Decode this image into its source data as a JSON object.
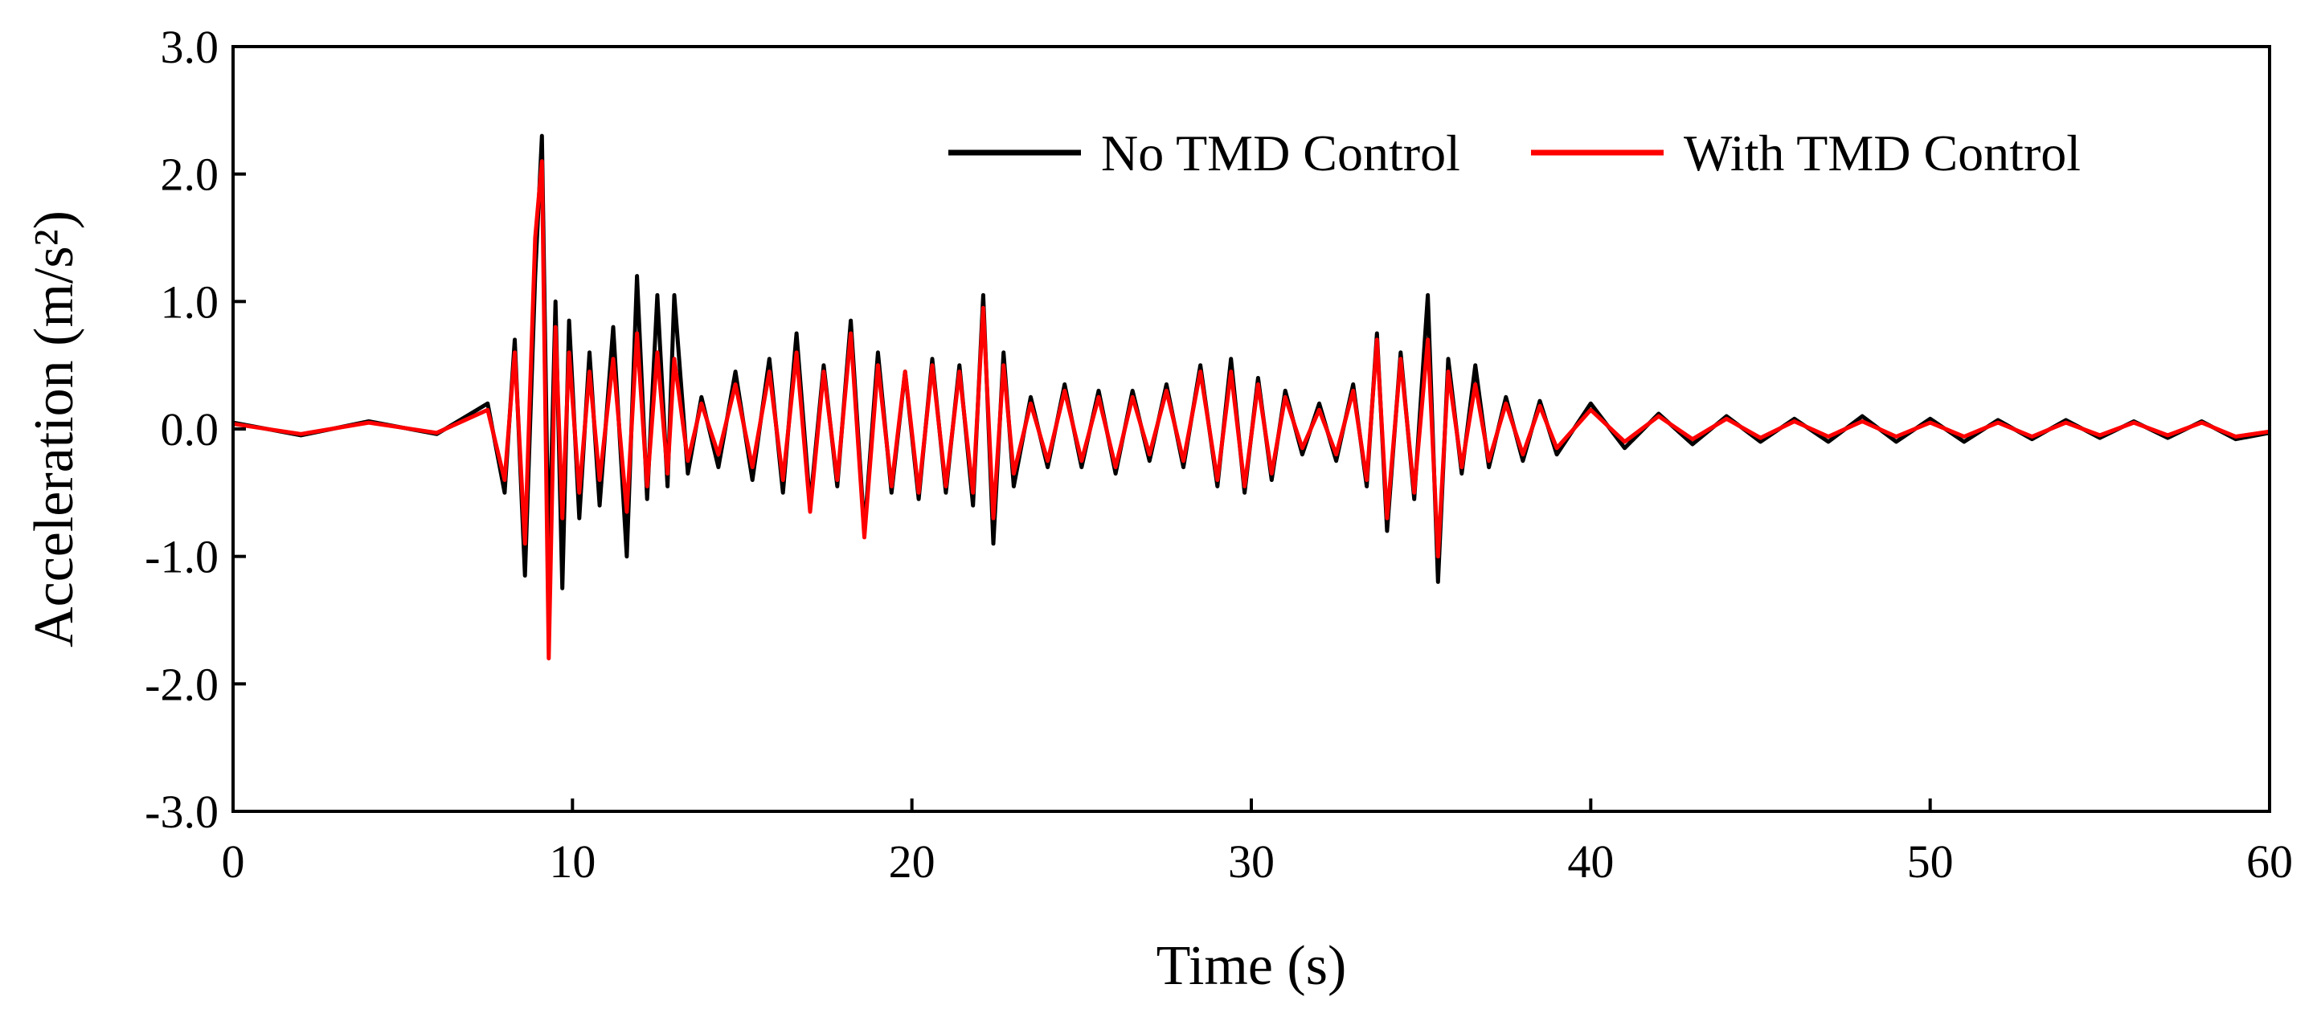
{
  "chart_data": {
    "type": "line",
    "title": "",
    "xlabel": "Time (s)",
    "ylabel": "Acceleration (m/s²)",
    "xlim": [
      0,
      60
    ],
    "ylim": [
      -3.0,
      3.0
    ],
    "x_ticks": [
      0,
      10,
      20,
      30,
      40,
      50,
      60
    ],
    "x_tick_labels": [
      "0",
      "10",
      "20",
      "30",
      "40",
      "50",
      "60"
    ],
    "y_ticks": [
      3.0,
      2.0,
      1.0,
      0.0,
      -1.0,
      -2.0,
      -3.0
    ],
    "y_tick_labels": [
      "3.0",
      "2.0",
      "1.0",
      "0.0",
      "-1.0",
      "-2.0",
      "-3.0"
    ],
    "grid": false,
    "legend_position": "top-right",
    "series": [
      {
        "name": "No TMD Control",
        "color": "#000000",
        "x": [
          0,
          2,
          4,
          6,
          7.5,
          8.0,
          8.3,
          8.6,
          8.9,
          9.1,
          9.3,
          9.5,
          9.7,
          9.9,
          10.2,
          10.5,
          10.8,
          11.2,
          11.6,
          11.9,
          12.2,
          12.5,
          12.8,
          13.0,
          13.4,
          13.8,
          14.3,
          14.8,
          15.3,
          15.8,
          16.2,
          16.6,
          17.0,
          17.4,
          17.8,
          18.2,
          18.6,
          19.0,
          19.4,
          19.8,
          20.2,
          20.6,
          21.0,
          21.4,
          21.8,
          22.1,
          22.4,
          22.7,
          23.0,
          23.5,
          24.0,
          24.5,
          25.0,
          25.5,
          26.0,
          26.5,
          27.0,
          27.5,
          28.0,
          28.5,
          29.0,
          29.4,
          29.8,
          30.2,
          30.6,
          31.0,
          31.5,
          32.0,
          32.5,
          33.0,
          33.4,
          33.7,
          34.0,
          34.4,
          34.8,
          35.2,
          35.5,
          35.8,
          36.2,
          36.6,
          37.0,
          37.5,
          38.0,
          38.5,
          39.0,
          40.0,
          41.0,
          42.0,
          43.0,
          44.0,
          45.0,
          46.0,
          47.0,
          48.0,
          49.0,
          50.0,
          51.0,
          52.0,
          53.0,
          54.0,
          55.0,
          56.0,
          57.0,
          58.0,
          59.0,
          60.0
        ],
        "y": [
          0.05,
          -0.05,
          0.06,
          -0.04,
          0.2,
          -0.5,
          0.7,
          -1.15,
          1.2,
          2.3,
          -1.1,
          1.0,
          -1.25,
          0.85,
          -0.7,
          0.6,
          -0.6,
          0.8,
          -1.0,
          1.2,
          -0.55,
          1.05,
          -0.45,
          1.05,
          -0.35,
          0.25,
          -0.3,
          0.45,
          -0.4,
          0.55,
          -0.5,
          0.75,
          -0.6,
          0.5,
          -0.45,
          0.85,
          -0.8,
          0.6,
          -0.5,
          0.45,
          -0.55,
          0.55,
          -0.5,
          0.5,
          -0.6,
          1.05,
          -0.9,
          0.6,
          -0.45,
          0.25,
          -0.3,
          0.35,
          -0.3,
          0.3,
          -0.35,
          0.3,
          -0.25,
          0.35,
          -0.3,
          0.5,
          -0.45,
          0.55,
          -0.5,
          0.4,
          -0.4,
          0.3,
          -0.2,
          0.2,
          -0.25,
          0.35,
          -0.45,
          0.75,
          -0.8,
          0.6,
          -0.55,
          1.05,
          -1.2,
          0.55,
          -0.35,
          0.5,
          -0.3,
          0.25,
          -0.25,
          0.22,
          -0.2,
          0.2,
          -0.15,
          0.12,
          -0.12,
          0.1,
          -0.1,
          0.08,
          -0.1,
          0.1,
          -0.1,
          0.08,
          -0.1,
          0.07,
          -0.08,
          0.07,
          -0.07,
          0.06,
          -0.07,
          0.06,
          -0.08,
          -0.03
        ]
      },
      {
        "name": "With TMD Control",
        "color": "#ff0000",
        "x": [
          0,
          2,
          4,
          6,
          7.5,
          8.0,
          8.3,
          8.6,
          8.9,
          9.1,
          9.3,
          9.5,
          9.7,
          9.9,
          10.2,
          10.5,
          10.8,
          11.2,
          11.6,
          11.9,
          12.2,
          12.5,
          12.8,
          13.0,
          13.4,
          13.8,
          14.3,
          14.8,
          15.3,
          15.8,
          16.2,
          16.6,
          17.0,
          17.4,
          17.8,
          18.2,
          18.6,
          19.0,
          19.4,
          19.8,
          20.2,
          20.6,
          21.0,
          21.4,
          21.8,
          22.1,
          22.4,
          22.7,
          23.0,
          23.5,
          24.0,
          24.5,
          25.0,
          25.5,
          26.0,
          26.5,
          27.0,
          27.5,
          28.0,
          28.5,
          29.0,
          29.4,
          29.8,
          30.2,
          30.6,
          31.0,
          31.5,
          32.0,
          32.5,
          33.0,
          33.4,
          33.7,
          34.0,
          34.4,
          34.8,
          35.2,
          35.5,
          35.8,
          36.2,
          36.6,
          37.0,
          37.5,
          38.0,
          38.5,
          39.0,
          40.0,
          41.0,
          42.0,
          43.0,
          44.0,
          45.0,
          46.0,
          47.0,
          48.0,
          49.0,
          50.0,
          51.0,
          52.0,
          53.0,
          54.0,
          55.0,
          56.0,
          57.0,
          58.0,
          59.0,
          60.0
        ],
        "y": [
          0.04,
          -0.04,
          0.05,
          -0.03,
          0.15,
          -0.4,
          0.6,
          -0.9,
          1.5,
          2.1,
          -1.8,
          0.8,
          -0.7,
          0.6,
          -0.5,
          0.45,
          -0.4,
          0.55,
          -0.65,
          0.75,
          -0.45,
          0.6,
          -0.35,
          0.55,
          -0.25,
          0.2,
          -0.2,
          0.35,
          -0.3,
          0.45,
          -0.4,
          0.6,
          -0.65,
          0.45,
          -0.4,
          0.75,
          -0.85,
          0.5,
          -0.45,
          0.45,
          -0.5,
          0.5,
          -0.45,
          0.45,
          -0.5,
          0.95,
          -0.7,
          0.5,
          -0.35,
          0.2,
          -0.25,
          0.3,
          -0.25,
          0.25,
          -0.3,
          0.25,
          -0.2,
          0.3,
          -0.25,
          0.45,
          -0.4,
          0.45,
          -0.45,
          0.35,
          -0.35,
          0.25,
          -0.15,
          0.15,
          -0.2,
          0.3,
          -0.4,
          0.7,
          -0.7,
          0.55,
          -0.5,
          0.7,
          -1.0,
          0.45,
          -0.3,
          0.35,
          -0.25,
          0.2,
          -0.2,
          0.18,
          -0.15,
          0.15,
          -0.1,
          0.1,
          -0.08,
          0.08,
          -0.07,
          0.06,
          -0.06,
          0.06,
          -0.06,
          0.05,
          -0.06,
          0.05,
          -0.06,
          0.05,
          -0.05,
          0.05,
          -0.05,
          0.05,
          -0.06,
          -0.02
        ]
      }
    ]
  }
}
